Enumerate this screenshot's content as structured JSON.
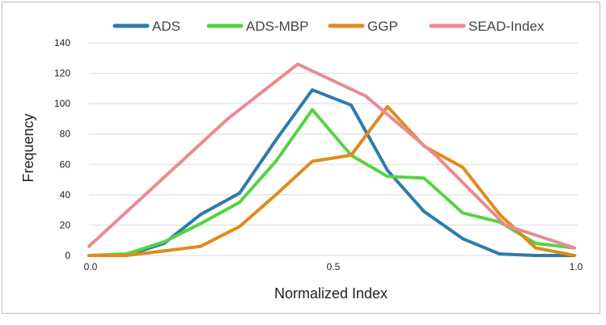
{
  "chart_data": {
    "type": "line",
    "title": "",
    "xlabel": "Normalized Index",
    "ylabel": "Frequency",
    "xlim": [
      0,
      1
    ],
    "ylim": [
      0,
      140
    ],
    "y_ticks": [
      0,
      20,
      40,
      60,
      80,
      100,
      120,
      140
    ],
    "x_ticks": [
      {
        "value": 0.0,
        "label": "0.0"
      },
      {
        "value": 0.5,
        "label": "0.5"
      },
      {
        "value": 1.0,
        "label": "1.0"
      }
    ],
    "grid": true,
    "legend_position": "top",
    "series": [
      {
        "name": "ADS",
        "color": "#2e7bab",
        "x": [
          0.0,
          0.077,
          0.155,
          0.23,
          0.31,
          0.385,
          0.46,
          0.54,
          0.615,
          0.69,
          0.77,
          0.846,
          0.92,
          1.0
        ],
        "y": [
          0,
          0,
          8,
          27,
          41,
          76,
          109,
          99,
          56,
          29,
          11,
          1,
          0,
          0
        ]
      },
      {
        "name": "ADS-MBP",
        "color": "#55d43f",
        "x": [
          0.0,
          0.077,
          0.155,
          0.23,
          0.31,
          0.385,
          0.46,
          0.54,
          0.615,
          0.69,
          0.77,
          0.846,
          0.92,
          1.0
        ],
        "y": [
          0,
          1,
          9,
          21,
          35,
          62,
          96,
          66,
          52,
          51,
          28,
          22,
          8,
          5
        ]
      },
      {
        "name": "GGP",
        "color": "#e08a1e",
        "x": [
          0.0,
          0.077,
          0.155,
          0.23,
          0.31,
          0.385,
          0.46,
          0.54,
          0.615,
          0.69,
          0.77,
          0.846,
          0.92,
          1.0
        ],
        "y": [
          0,
          0,
          3,
          6,
          19,
          40,
          62,
          66,
          98,
          72,
          58,
          27,
          5,
          0
        ]
      },
      {
        "name": "SEAD-Index",
        "color": "#ea8a93",
        "x": [
          0.0,
          0.143,
          0.286,
          0.43,
          0.57,
          0.714,
          0.857,
          1.0
        ],
        "y": [
          6,
          48,
          90,
          126,
          105,
          66,
          20,
          5
        ]
      }
    ]
  }
}
